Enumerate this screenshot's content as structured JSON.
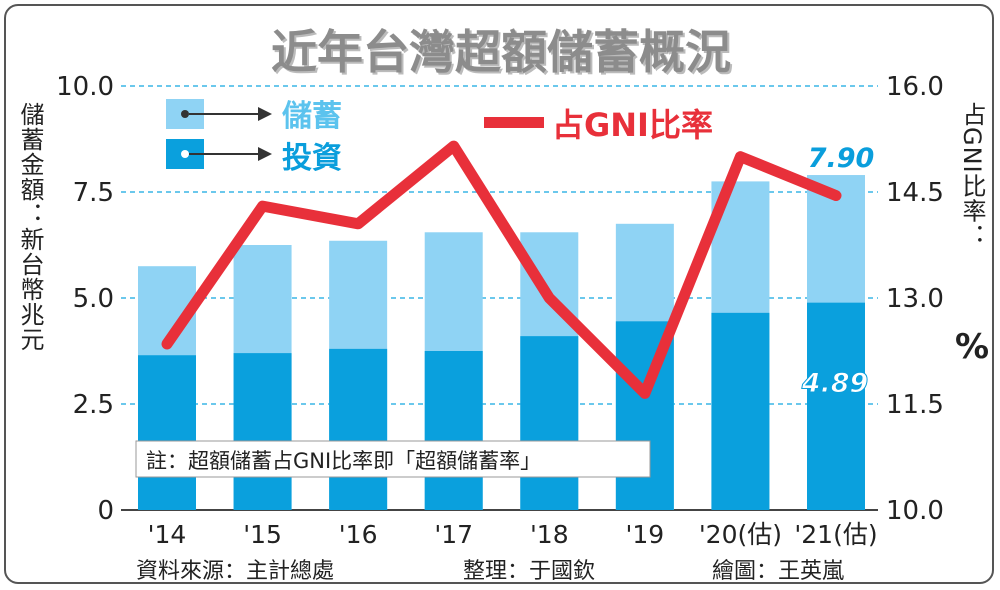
{
  "chart_data": {
    "type": "bar",
    "title": "近年台灣超額儲蓄概況",
    "categories": [
      "'14",
      "'15",
      "'16",
      "'17",
      "'18",
      "'19",
      "'20(估)",
      "'21(估)"
    ],
    "series": [
      {
        "name": "投資",
        "kind": "bar-stack-bottom",
        "values": [
          3.65,
          3.7,
          3.8,
          3.75,
          4.1,
          4.45,
          4.65,
          4.89
        ]
      },
      {
        "name": "儲蓄",
        "kind": "bar-total",
        "values": [
          5.75,
          6.25,
          6.35,
          6.55,
          6.55,
          6.75,
          7.75,
          7.9
        ]
      },
      {
        "name": "占GNI比率",
        "kind": "line",
        "axis": "right",
        "values": [
          12.35,
          14.3,
          14.05,
          15.15,
          13.0,
          11.65,
          15.0,
          14.45
        ]
      }
    ],
    "ylabel_left": "儲蓄金額：新台幣兆元",
    "ylabel_right": "占GNI比率：",
    "ylabel_right_unit": "%",
    "yticks_left": [
      "0",
      "2.5",
      "5.0",
      "7.5",
      "10.0"
    ],
    "yticks_right": [
      "10.0",
      "11.5",
      "13.0",
      "14.5",
      "16.0"
    ],
    "ylim_left": [
      0,
      10
    ],
    "ylim_right": [
      10,
      16
    ],
    "data_labels": {
      "savings_2021": "7.90",
      "investment_2021": "4.89"
    },
    "note": "註：超額儲蓄占GNI比率即「超額儲蓄率」",
    "legend": {
      "placement": "top-left",
      "line_placement": "top-center"
    },
    "grid": "dashed-horizontal",
    "colors": {
      "savings": "#8fd3f4",
      "investment": "#0aa0dd",
      "line": "#e8303a",
      "title": "#8c8c8c",
      "grid": "#3ab5e6",
      "label_blue": "#0a9edc"
    }
  },
  "footer": {
    "source": "資料來源：主計總處",
    "editor": "整理：于國欽",
    "illustrator": "繪圖：王英嵐"
  }
}
